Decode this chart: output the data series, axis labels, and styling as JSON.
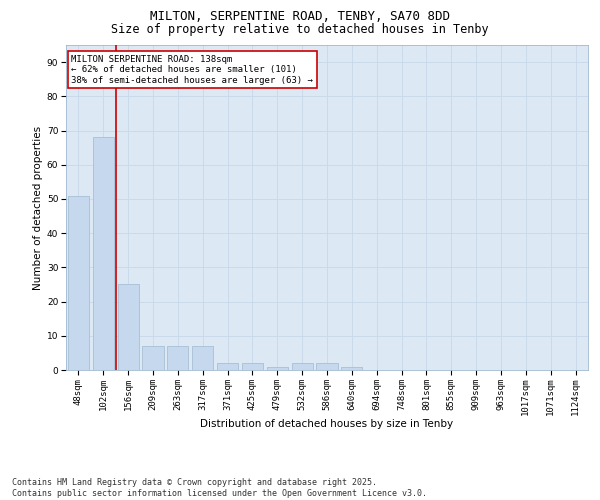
{
  "title_line1": "MILTON, SERPENTINE ROAD, TENBY, SA70 8DD",
  "title_line2": "Size of property relative to detached houses in Tenby",
  "xlabel": "Distribution of detached houses by size in Tenby",
  "ylabel": "Number of detached properties",
  "categories": [
    "48sqm",
    "102sqm",
    "156sqm",
    "209sqm",
    "263sqm",
    "317sqm",
    "371sqm",
    "425sqm",
    "479sqm",
    "532sqm",
    "586sqm",
    "640sqm",
    "694sqm",
    "748sqm",
    "801sqm",
    "855sqm",
    "909sqm",
    "963sqm",
    "1017sqm",
    "1071sqm",
    "1124sqm"
  ],
  "values": [
    51,
    68,
    25,
    7,
    7,
    7,
    2,
    2,
    1,
    2,
    2,
    1,
    0,
    0,
    0,
    0,
    0,
    0,
    0,
    0,
    0
  ],
  "bar_color": "#c5d8ed",
  "bar_edge_color": "#a0b8d0",
  "vline_x": 1.5,
  "vline_color": "#cc0000",
  "annotation_text": "MILTON SERPENTINE ROAD: 138sqm\n← 62% of detached houses are smaller (101)\n38% of semi-detached houses are larger (63) →",
  "annotation_box_color": "white",
  "annotation_box_edge_color": "#cc0000",
  "ylim": [
    0,
    95
  ],
  "yticks": [
    0,
    10,
    20,
    30,
    40,
    50,
    60,
    70,
    80,
    90
  ],
  "grid_color": "#c8d8e8",
  "background_color": "#dce9f5",
  "footer_text": "Contains HM Land Registry data © Crown copyright and database right 2025.\nContains public sector information licensed under the Open Government Licence v3.0.",
  "title_fontsize": 9,
  "subtitle_fontsize": 8.5,
  "axis_label_fontsize": 7.5,
  "tick_fontsize": 6.5,
  "annotation_fontsize": 6.5,
  "footer_fontsize": 6
}
